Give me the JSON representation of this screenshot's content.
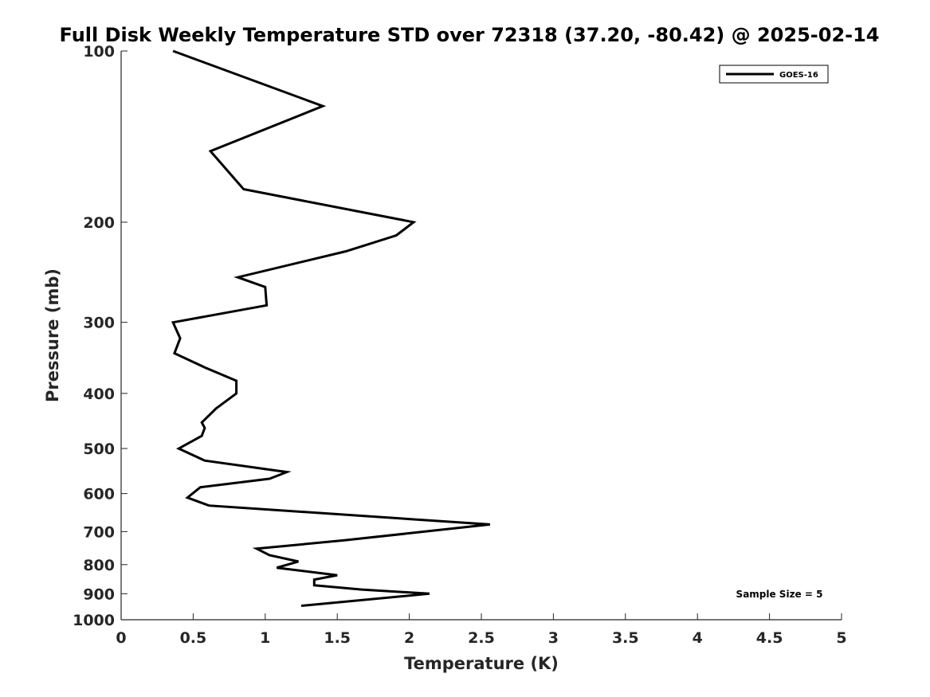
{
  "chart_data": {
    "type": "line",
    "title": "Full Disk Weekly Temperature STD over 72318 (37.20, -80.42) @ 2025-02-14",
    "xlabel": "Temperature (K)",
    "ylabel": "Pressure (mb)",
    "xlim": [
      0,
      5
    ],
    "ylim": [
      100,
      1000
    ],
    "y_scale": "log",
    "y_reversed": true,
    "x_ticks": [
      {
        "value": 0,
        "label": "0"
      },
      {
        "value": 0.5,
        "label": "0.5"
      },
      {
        "value": 1,
        "label": "1"
      },
      {
        "value": 1.5,
        "label": "1.5"
      },
      {
        "value": 2,
        "label": "2"
      },
      {
        "value": 2.5,
        "label": "2.5"
      },
      {
        "value": 3,
        "label": "3"
      },
      {
        "value": 3.5,
        "label": "3.5"
      },
      {
        "value": 4,
        "label": "4"
      },
      {
        "value": 4.5,
        "label": "4.5"
      },
      {
        "value": 5,
        "label": "5"
      }
    ],
    "y_ticks": [
      {
        "value": 100,
        "label": "100"
      },
      {
        "value": 200,
        "label": "200"
      },
      {
        "value": 300,
        "label": "300"
      },
      {
        "value": 400,
        "label": "400"
      },
      {
        "value": 500,
        "label": "500"
      },
      {
        "value": 600,
        "label": "600"
      },
      {
        "value": 700,
        "label": "700"
      },
      {
        "value": 800,
        "label": "800"
      },
      {
        "value": 900,
        "label": "900"
      },
      {
        "value": 1000,
        "label": "1000"
      }
    ],
    "grid": false,
    "legend_position": "top-right",
    "series": [
      {
        "name": "GOES-16",
        "color": "#000000",
        "points": [
          {
            "x": 0.36,
            "y": 100
          },
          {
            "x": 1.4,
            "y": 125
          },
          {
            "x": 0.62,
            "y": 150
          },
          {
            "x": 0.85,
            "y": 175
          },
          {
            "x": 2.03,
            "y": 200
          },
          {
            "x": 1.91,
            "y": 211
          },
          {
            "x": 1.56,
            "y": 225
          },
          {
            "x": 0.81,
            "y": 250
          },
          {
            "x": 1.0,
            "y": 260
          },
          {
            "x": 1.01,
            "y": 280
          },
          {
            "x": 0.36,
            "y": 300
          },
          {
            "x": 0.41,
            "y": 320
          },
          {
            "x": 0.37,
            "y": 340
          },
          {
            "x": 0.58,
            "y": 360
          },
          {
            "x": 0.8,
            "y": 380
          },
          {
            "x": 0.8,
            "y": 400
          },
          {
            "x": 0.66,
            "y": 425
          },
          {
            "x": 0.56,
            "y": 450
          },
          {
            "x": 0.58,
            "y": 460
          },
          {
            "x": 0.56,
            "y": 475
          },
          {
            "x": 0.4,
            "y": 500
          },
          {
            "x": 0.58,
            "y": 525
          },
          {
            "x": 1.15,
            "y": 550
          },
          {
            "x": 1.03,
            "y": 565
          },
          {
            "x": 0.55,
            "y": 585
          },
          {
            "x": 0.46,
            "y": 610
          },
          {
            "x": 0.61,
            "y": 630
          },
          {
            "x": 2.56,
            "y": 680
          },
          {
            "x": 1.55,
            "y": 725
          },
          {
            "x": 0.94,
            "y": 750
          },
          {
            "x": 1.03,
            "y": 770
          },
          {
            "x": 1.23,
            "y": 790
          },
          {
            "x": 1.08,
            "y": 810
          },
          {
            "x": 1.5,
            "y": 835
          },
          {
            "x": 1.34,
            "y": 850
          },
          {
            "x": 1.34,
            "y": 870
          },
          {
            "x": 1.67,
            "y": 885
          },
          {
            "x": 2.14,
            "y": 900
          },
          {
            "x": 1.25,
            "y": 945
          }
        ]
      }
    ],
    "legend_entries": [
      "GOES-16"
    ],
    "annotations": [
      {
        "text": "Sample Size = 5",
        "position": "bottom-right"
      }
    ]
  }
}
